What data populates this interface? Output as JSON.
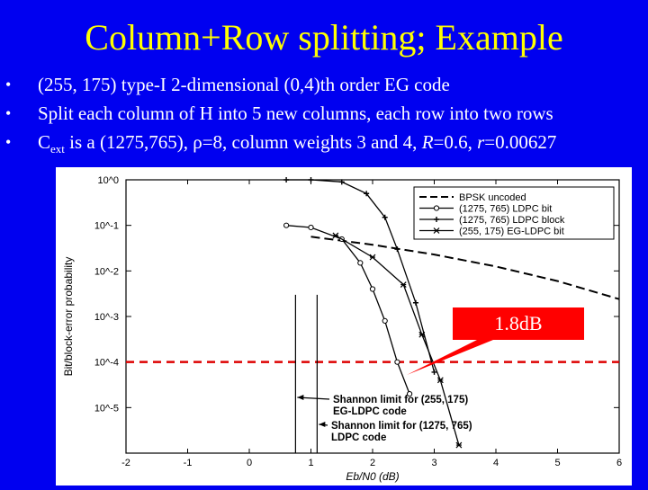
{
  "slide": {
    "title": "Column+Row splitting; Example",
    "bullets": [
      {
        "text": "(255, 175) type-I 2-dimensional (0,4)th order EG code"
      },
      {
        "text": "Split each column of H into 5 new columns, each row into two rows"
      },
      {
        "pre": "C",
        "sub": "ext",
        "post": " is a (1275,765), ρ=8, column weights 3 and 4, ",
        "r1": "R",
        "mid": "=0.6, ",
        "r2": "r",
        "end": "=0.00627"
      }
    ],
    "bullet_glyph": "•",
    "annotation": "1.8dB",
    "colors": {
      "background": "#0000f0",
      "title": "#ffff00",
      "text": "#ffffff",
      "annotation": "#ff0000"
    }
  },
  "chart_data": {
    "type": "line",
    "xlabel": "Eb/N0 (dB)",
    "ylabel": "Bit/block-error probability",
    "xlim": [
      -2,
      6
    ],
    "ylim": [
      1e-06,
      1
    ],
    "yscale": "log",
    "x_ticks": [
      "-2",
      "-1",
      "0",
      "1",
      "2",
      "3",
      "4",
      "5",
      "6"
    ],
    "y_ticks": [
      "10^0",
      "10^-1",
      "10^-2",
      "10^-3",
      "10^-4",
      "10^-5"
    ],
    "legend_placement": "top-right",
    "series": [
      {
        "name": "BPSK uncoded",
        "style": "dashed",
        "x": [
          1,
          2,
          3,
          4,
          5,
          6
        ],
        "y": [
          0.0563,
          0.0375,
          0.0229,
          0.0125,
          0.006,
          0.0024
        ]
      },
      {
        "name": "(1275, 765) LDPC bit",
        "style": "circle",
        "x": [
          0.6,
          1,
          1.5,
          1.8,
          2.0,
          2.2,
          2.4,
          2.6
        ],
        "y": [
          0.1,
          0.09,
          0.05,
          0.015,
          0.004,
          0.0008,
          0.0001,
          2e-05
        ]
      },
      {
        "name": "(1275, 765) LDPC block",
        "style": "plus",
        "x": [
          0.6,
          1,
          1.5,
          1.9,
          2.2,
          2.4,
          2.7,
          3.0
        ],
        "y": [
          1,
          1,
          0.9,
          0.5,
          0.15,
          0.03,
          0.002,
          6e-05
        ]
      },
      {
        "name": "(255, 175) EG-LDPC bit",
        "style": "star",
        "x": [
          1.4,
          2.0,
          2.5,
          2.8,
          3.1,
          3.4
        ],
        "y": [
          0.06,
          0.02,
          0.005,
          0.0004,
          4e-05,
          1.5e-06
        ]
      }
    ],
    "reference_line": {
      "y": 0.0001,
      "color": "#dd0000",
      "style": "dashed"
    },
    "shannon_limits": [
      {
        "x": 0.75,
        "top": 0.003,
        "text": [
          "Shannon limit for (255, 175)",
          "EG-LDPC code"
        ]
      },
      {
        "x": 1.1,
        "top": 0.003,
        "text": [
          "Shannon limit for (1275, 765)",
          "LDPC code"
        ]
      }
    ]
  }
}
